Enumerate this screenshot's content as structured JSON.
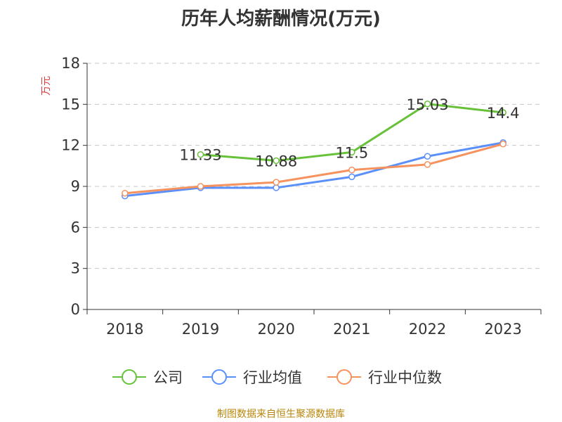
{
  "title": "历年人均薪酬情况(万元)",
  "footer": "制图数据来自恒生聚源数据库",
  "chart_data": {
    "type": "line",
    "title": "历年人均薪酬情况(万元)",
    "ylabel": "万元",
    "ylim": [
      0,
      18
    ],
    "yticks": [
      "0",
      "3",
      "6",
      "9",
      "12",
      "15",
      "18"
    ],
    "categories": [
      "2018",
      "2019",
      "2020",
      "2021",
      "2022",
      "2023"
    ],
    "grid": true,
    "legend_position": "bottom",
    "series": [
      {
        "name": "公司",
        "color": "#67c23a",
        "values": [
          null,
          11.33,
          10.88,
          11.5,
          15.03,
          14.4
        ],
        "labels": [
          "",
          "11.33",
          "10.88",
          "11.5",
          "15.03",
          "14.4"
        ]
      },
      {
        "name": "行业均值",
        "color": "#5b8ff9",
        "values": [
          8.3,
          8.9,
          8.9,
          9.7,
          11.2,
          12.2
        ]
      },
      {
        "name": "行业中位数",
        "color": "#f5925e",
        "values": [
          8.5,
          9.0,
          9.3,
          10.2,
          10.6,
          12.1
        ]
      }
    ]
  }
}
